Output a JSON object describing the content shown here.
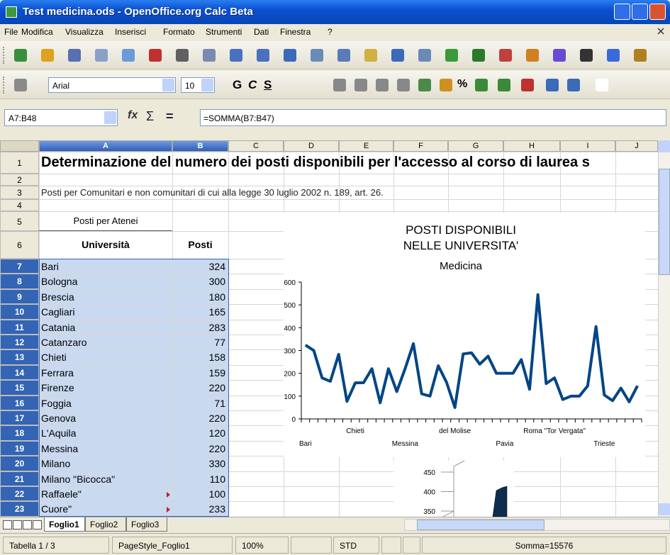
{
  "window": {
    "title": "Test medicina.ods - OpenOffice.org Calc Beta"
  },
  "menu": [
    "File",
    "Modifica",
    "Visualizza",
    "Inserisci",
    "Formato",
    "Strumenti",
    "Dati",
    "Finestra",
    "?"
  ],
  "formatting": {
    "font": "Arial",
    "size": 10,
    "buttons": [
      "G",
      "C",
      "S"
    ],
    "percent": "%"
  },
  "formula_bar": {
    "cell_ref": "A7:B48",
    "icons": [
      "fx",
      "Σ",
      "="
    ],
    "formula": "=SOMMA(B7:B47)"
  },
  "columns": [
    "A",
    "B",
    "C",
    "D",
    "E",
    "F",
    "G",
    "H",
    "I",
    "J"
  ],
  "rows": [
    1,
    2,
    3,
    4,
    5,
    6,
    7,
    8,
    9,
    10,
    11,
    12,
    13,
    14,
    15,
    16,
    17,
    18,
    19,
    20,
    21,
    22,
    23
  ],
  "sheet": {
    "title": "Determinazione del numero dei posti disponibili per l'accesso al corso di laurea s",
    "note": "Posti per Comunitari e non comunitari di cui alla legge 30 luglio 2002 n. 189, art. 26.",
    "table_caption": "Posti per Atenei",
    "header": [
      "Università",
      "Posti"
    ],
    "data": [
      [
        "Bari",
        324
      ],
      [
        "Bologna",
        300
      ],
      [
        "Brescia",
        180
      ],
      [
        "Cagliari",
        165
      ],
      [
        "Catania",
        283
      ],
      [
        "Catanzaro",
        77
      ],
      [
        "Chieti",
        158
      ],
      [
        "Ferrara",
        159
      ],
      [
        "Firenze",
        220
      ],
      [
        "Foggia",
        71
      ],
      [
        "Genova",
        220
      ],
      [
        "L'Aquila",
        120
      ],
      [
        "Messina",
        220
      ],
      [
        "Milano",
        330
      ],
      [
        "Milano \"Bicocca\"",
        110
      ],
      [
        "Raffaele\"",
        100
      ],
      [
        "Cuore\"",
        233
      ]
    ]
  },
  "chart_data": [
    {
      "type": "line",
      "title": [
        "POSTI DISPONIBILI",
        "NELLE UNIVERSITA'"
      ],
      "subtitle": "Medicina",
      "categories": [
        "Bari",
        null,
        null,
        null,
        null,
        null,
        "Chieti",
        null,
        null,
        null,
        null,
        null,
        "Messina",
        null,
        null,
        null,
        null,
        null,
        "del Molise",
        null,
        null,
        null,
        null,
        null,
        "Pavia",
        null,
        null,
        null,
        null,
        null,
        "Roma \"Tor Vergata\"",
        null,
        null,
        null,
        null,
        null,
        "Trieste",
        null,
        null,
        null,
        null
      ],
      "values": [
        324,
        300,
        180,
        165,
        283,
        77,
        158,
        159,
        220,
        71,
        220,
        120,
        220,
        330,
        110,
        100,
        233,
        160,
        50,
        285,
        290,
        240,
        275,
        200,
        200,
        200,
        260,
        130,
        545,
        155,
        180,
        85,
        100,
        100,
        145,
        405,
        105,
        80,
        135,
        75,
        145
      ],
      "color": "#004586",
      "ylim": [
        0,
        600
      ],
      "yticks": [
        0,
        100,
        200,
        300,
        400,
        500,
        600
      ]
    },
    {
      "type": "bar",
      "values": [
        410
      ],
      "color": "#0d2c4e",
      "ylim": [
        340,
        470
      ],
      "yticks": [
        350,
        400,
        450
      ]
    }
  ],
  "sheet_tabs": [
    "Foglio1",
    "Foglio2",
    "Foglio3"
  ],
  "status_bar": [
    "Tabella 1 / 3",
    "PageStyle_Foglio1",
    "100%",
    "STD",
    "Somma=15576"
  ]
}
